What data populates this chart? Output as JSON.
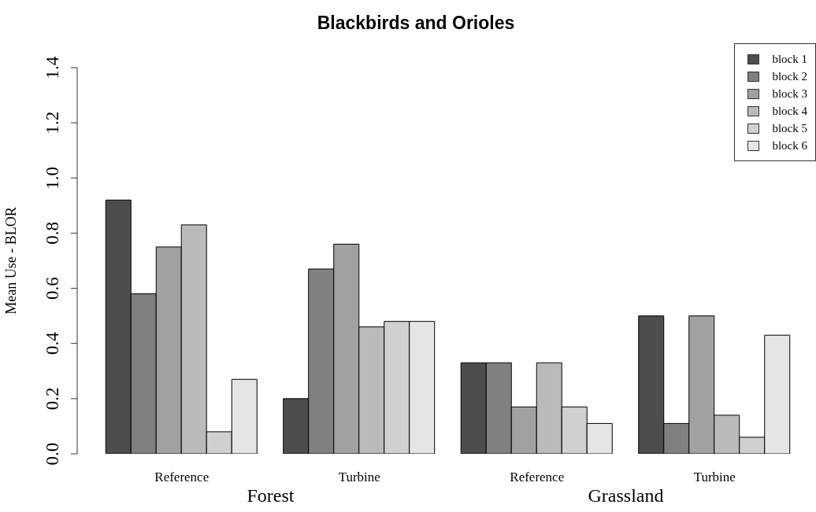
{
  "chart_data": {
    "type": "bar",
    "title": "Blackbirds and Orioles",
    "ylabel": "Mean Use - BLOR",
    "categories": [
      "Reference",
      "Turbine",
      "Reference",
      "Turbine"
    ],
    "annotations": [
      "Forest",
      "Grassland"
    ],
    "series": [
      {
        "name": "block 1",
        "color": "#4d4d4d",
        "values": [
          0.92,
          0.2,
          0.33,
          0.5
        ]
      },
      {
        "name": "block 2",
        "color": "#808080",
        "values": [
          0.58,
          0.67,
          0.33,
          0.11
        ]
      },
      {
        "name": "block 3",
        "color": "#a1a1a1",
        "values": [
          0.75,
          0.76,
          0.17,
          0.5
        ]
      },
      {
        "name": "block 4",
        "color": "#bababa",
        "values": [
          0.83,
          0.46,
          0.33,
          0.14
        ]
      },
      {
        "name": "block 5",
        "color": "#d0d0d0",
        "values": [
          0.08,
          0.48,
          0.17,
          0.06
        ]
      },
      {
        "name": "block 6",
        "color": "#e5e5e5",
        "values": [
          0.27,
          0.48,
          0.11,
          0.43
        ]
      }
    ],
    "ylim": [
      0,
      1.4
    ],
    "yticks": [
      {
        "value": 0,
        "label": "0.0"
      },
      0.2,
      0.4,
      0.6,
      0.8,
      {
        "value": 1,
        "label": "1.0"
      },
      1.2,
      1.4
    ],
    "legend": "top right"
  }
}
